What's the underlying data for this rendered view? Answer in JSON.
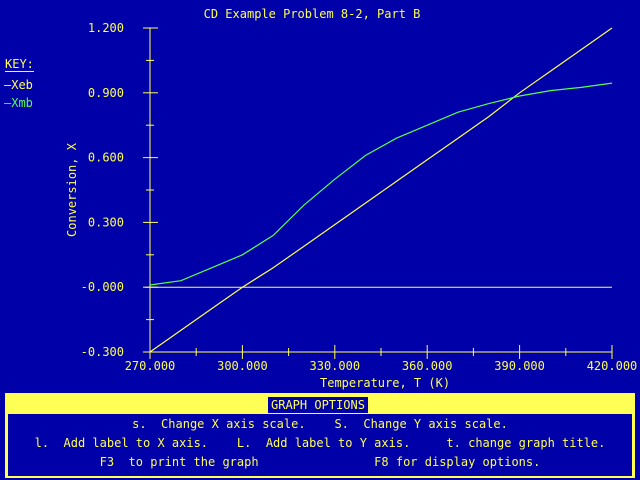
{
  "chart_data": {
    "type": "line",
    "title": "CD Example Problem 8-2, Part B",
    "xlabel": "Temperature, T (K)",
    "ylabel": "Conversion, X",
    "xlim": [
      270,
      420
    ],
    "ylim": [
      -0.3,
      1.2
    ],
    "xticks": [
      "270.000",
      "300.000",
      "330.000",
      "360.000",
      "390.000",
      "420.000"
    ],
    "yticks": [
      "1.200",
      "0.900",
      "0.600",
      "0.300",
      "-0.000",
      "-0.300"
    ],
    "legend_title": "KEY:",
    "legend_placement": "left",
    "x": [
      270,
      280,
      290,
      300,
      310,
      320,
      330,
      340,
      350,
      360,
      370,
      380,
      390,
      400,
      410,
      420
    ],
    "series": [
      {
        "name": "Xeb",
        "color": "#ffff55",
        "values": [
          -0.3,
          -0.2,
          -0.1,
          0.0,
          0.09,
          0.19,
          0.29,
          0.39,
          0.49,
          0.59,
          0.69,
          0.79,
          0.9,
          1.0,
          1.1,
          1.2
        ]
      },
      {
        "name": "Xmb",
        "color": "#55ff55",
        "values": [
          0.01,
          0.03,
          0.09,
          0.15,
          0.24,
          0.38,
          0.5,
          0.61,
          0.69,
          0.75,
          0.81,
          0.85,
          0.885,
          0.91,
          0.925,
          0.945
        ]
      }
    ]
  },
  "options": {
    "title": "GRAPH OPTIONS",
    "row1": "s.  Change X axis scale.    S.  Change Y axis scale.",
    "row2": "l.  Add label to X axis.    L.  Add label to Y axis.     t. change graph title.",
    "row3": "F3  to print the graph                F8 for display options."
  }
}
